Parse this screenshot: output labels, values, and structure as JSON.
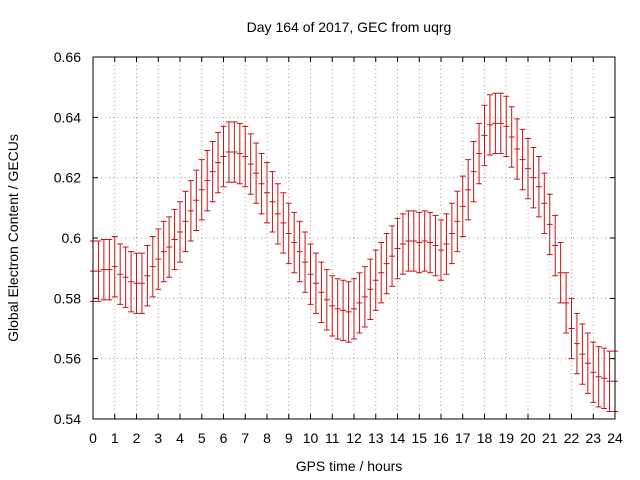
{
  "chart_data": {
    "type": "errorbar",
    "title": "Day 164 of 2017, GEC from uqrg",
    "xlabel": "GPS time / hours",
    "ylabel": "Global Electron Content / GECUs",
    "xlim": [
      0,
      24
    ],
    "ylim": [
      0.54,
      0.66
    ],
    "grid": true,
    "series_color": "#c81414",
    "x_ticks": [
      "0",
      "1",
      "2",
      "3",
      "4",
      "5",
      "6",
      "7",
      "8",
      "9",
      "10",
      "11",
      "12",
      "13",
      "14",
      "15",
      "16",
      "17",
      "18",
      "19",
      "20",
      "21",
      "22",
      "23",
      "24"
    ],
    "y_ticks": [
      "0.54",
      "0.56",
      "0.58",
      "0.6",
      "0.62",
      "0.64",
      "0.66"
    ],
    "y_tick_values": [
      0.54,
      0.56,
      0.58,
      0.6,
      0.62,
      0.64,
      0.66
    ],
    "x": [
      0,
      0.25,
      0.5,
      0.75,
      1,
      1.25,
      1.5,
      1.75,
      2,
      2.25,
      2.5,
      2.75,
      3,
      3.25,
      3.5,
      3.75,
      4,
      4.25,
      4.5,
      4.75,
      5,
      5.25,
      5.5,
      5.75,
      6,
      6.25,
      6.5,
      6.75,
      7,
      7.25,
      7.5,
      7.75,
      8,
      8.25,
      8.5,
      8.75,
      9,
      9.25,
      9.5,
      9.75,
      10,
      10.25,
      10.5,
      10.75,
      11,
      11.25,
      11.5,
      11.75,
      12,
      12.25,
      12.5,
      12.75,
      13,
      13.25,
      13.5,
      13.75,
      14,
      14.25,
      14.5,
      14.75,
      15,
      15.25,
      15.5,
      15.75,
      16,
      16.25,
      16.5,
      16.75,
      17,
      17.25,
      17.5,
      17.75,
      18,
      18.25,
      18.5,
      18.75,
      19,
      19.25,
      19.5,
      19.75,
      20,
      20.25,
      20.5,
      20.75,
      21,
      21.25,
      21.5,
      21.75,
      22,
      22.25,
      22.5,
      22.75,
      23,
      23.25,
      23.5,
      23.75,
      24
    ],
    "y": [
      0.589,
      0.589,
      0.5895,
      0.5895,
      0.5905,
      0.588,
      0.587,
      0.5855,
      0.585,
      0.585,
      0.5875,
      0.5905,
      0.593,
      0.5955,
      0.597,
      0.5995,
      0.602,
      0.6055,
      0.609,
      0.6125,
      0.616,
      0.619,
      0.622,
      0.625,
      0.627,
      0.6285,
      0.6285,
      0.628,
      0.627,
      0.6245,
      0.6215,
      0.618,
      0.615,
      0.612,
      0.608,
      0.605,
      0.6015,
      0.5985,
      0.5955,
      0.592,
      0.588,
      0.585,
      0.582,
      0.5795,
      0.5775,
      0.5765,
      0.576,
      0.5755,
      0.5765,
      0.5785,
      0.5805,
      0.583,
      0.586,
      0.5885,
      0.5915,
      0.594,
      0.5965,
      0.598,
      0.599,
      0.599,
      0.5985,
      0.599,
      0.5985,
      0.5975,
      0.596,
      0.598,
      0.6015,
      0.6055,
      0.6105,
      0.616,
      0.622,
      0.628,
      0.634,
      0.6375,
      0.638,
      0.638,
      0.637,
      0.6335,
      0.6295,
      0.626,
      0.623,
      0.62,
      0.617,
      0.6115,
      0.6045,
      0.5975,
      0.5885,
      0.5785,
      0.57,
      0.565,
      0.5615,
      0.5585,
      0.5555,
      0.554,
      0.5535,
      0.5525,
      0.5525
    ],
    "error": 0.01
  }
}
